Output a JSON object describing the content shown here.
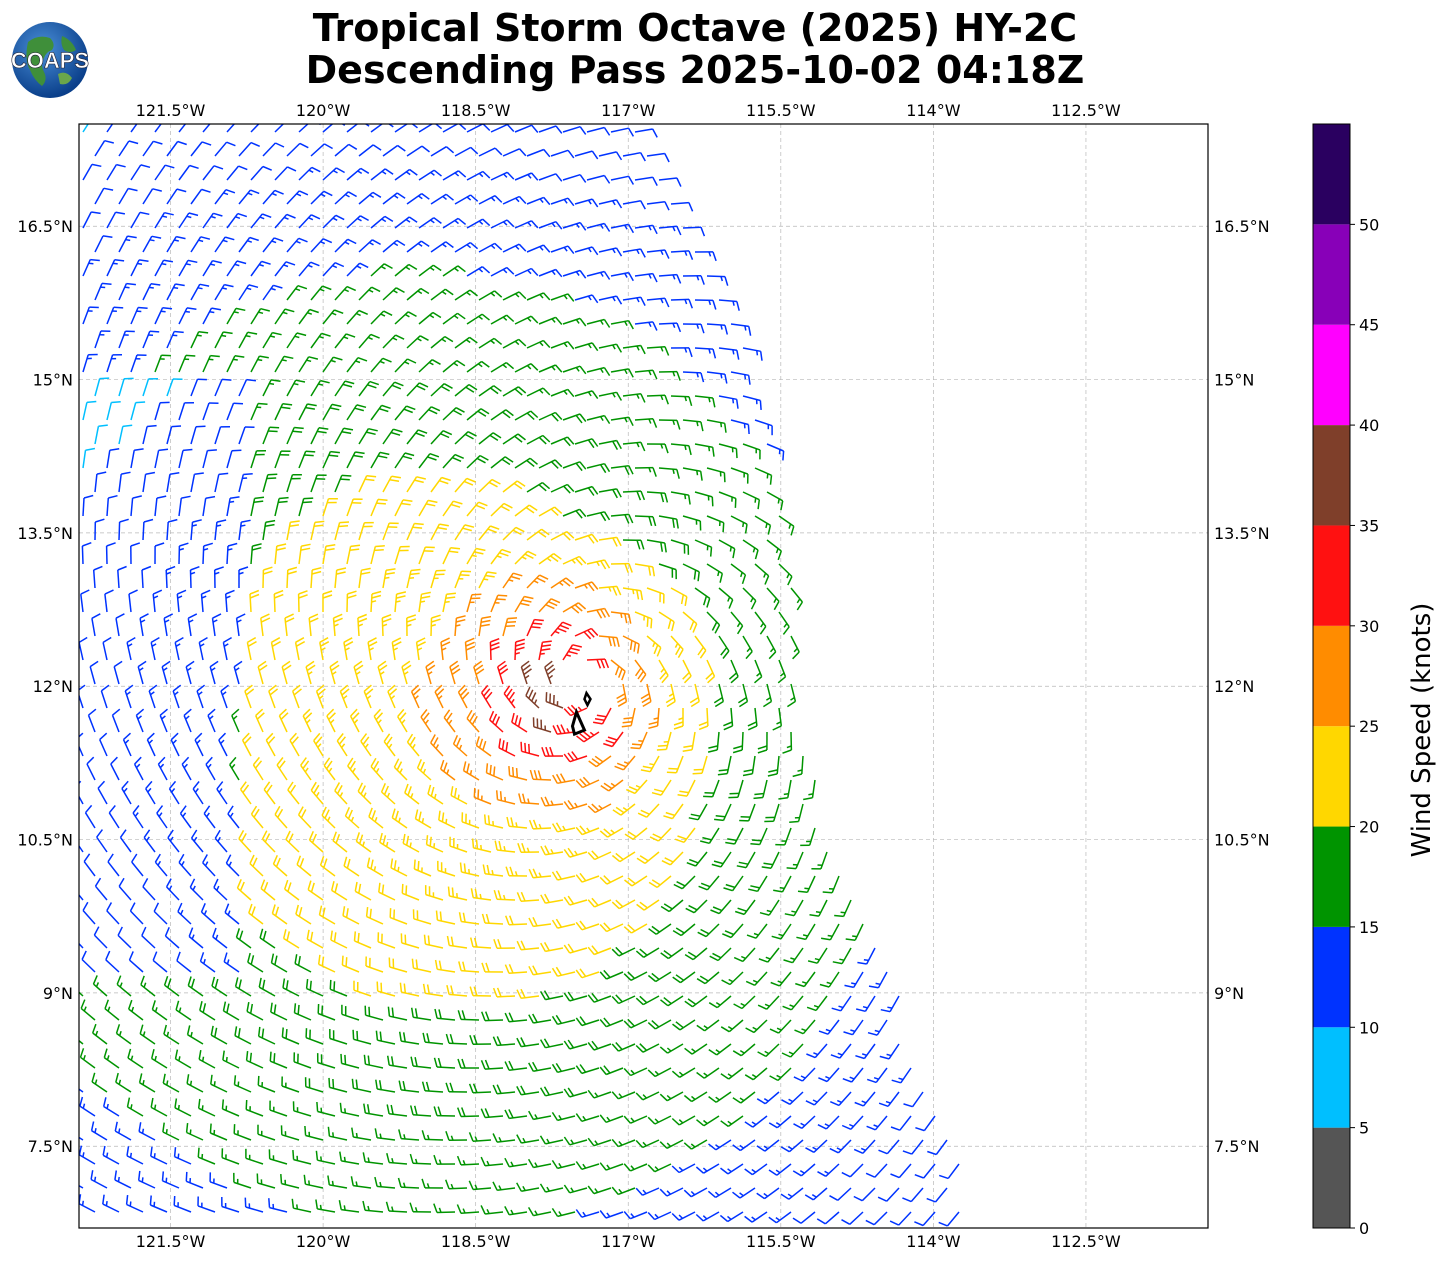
{
  "title_line1": "Tropical Storm Octave (2025) HY-2C",
  "title_line2": "Descending Pass 2025-10-02 04:18Z",
  "logo_text": "COAPS",
  "map": {
    "lon_range": [
      -122.4,
      -111.3
    ],
    "lat_range": [
      6.7,
      17.5
    ],
    "lon_ticks": [
      {
        "value": -121.5,
        "label": "121.5°W"
      },
      {
        "value": -120.0,
        "label": "120°W"
      },
      {
        "value": -118.5,
        "label": "118.5°W"
      },
      {
        "value": -117.0,
        "label": "117°W"
      },
      {
        "value": -115.5,
        "label": "115.5°W"
      },
      {
        "value": -114.0,
        "label": "114°W"
      },
      {
        "value": -112.5,
        "label": "112.5°W"
      }
    ],
    "lat_ticks": [
      {
        "value": 16.5,
        "label": "16.5°N"
      },
      {
        "value": 15.0,
        "label": "15°N"
      },
      {
        "value": 13.5,
        "label": "13.5°N"
      },
      {
        "value": 12.0,
        "label": "12°N"
      },
      {
        "value": 10.5,
        "label": "10.5°N"
      },
      {
        "value": 9.0,
        "label": "9°N"
      },
      {
        "value": 7.5,
        "label": "7.5°N"
      }
    ],
    "storm_center": {
      "lon": -117.45,
      "lat": 12.05
    },
    "swath_east_edge": [
      {
        "lat": 17.5,
        "lon": -116.7
      },
      {
        "lat": 15.0,
        "lon": -115.7
      },
      {
        "lat": 13.0,
        "lon": -115.3
      },
      {
        "lat": 12.0,
        "lon": -115.35
      },
      {
        "lat": 10.5,
        "lon": -114.95
      },
      {
        "lat": 9.0,
        "lon": -114.3
      },
      {
        "lat": 7.5,
        "lon": -113.75
      },
      {
        "lat": 6.7,
        "lon": -113.55
      }
    ]
  },
  "colorbar": {
    "label": "Wind Speed (knots)",
    "vmin": 0,
    "vmax": 55,
    "tick_labels": [
      "0",
      "5",
      "10",
      "15",
      "20",
      "25",
      "30",
      "35",
      "40",
      "45",
      "50"
    ],
    "bins": [
      {
        "from": 0,
        "to": 5,
        "color": "#555555"
      },
      {
        "from": 5,
        "to": 10,
        "color": "#00bfff"
      },
      {
        "from": 10,
        "to": 15,
        "color": "#0033ff"
      },
      {
        "from": 15,
        "to": 20,
        "color": "#009400"
      },
      {
        "from": 20,
        "to": 25,
        "color": "#ffd700"
      },
      {
        "from": 25,
        "to": 30,
        "color": "#ff8c00"
      },
      {
        "from": 30,
        "to": 35,
        "color": "#ff1111"
      },
      {
        "from": 35,
        "to": 40,
        "color": "#7f3f2a"
      },
      {
        "from": 40,
        "to": 45,
        "color": "#ff00ff"
      },
      {
        "from": 45,
        "to": 50,
        "color": "#8800b8"
      },
      {
        "from": 50,
        "to": 55,
        "color": "#2a0060"
      }
    ]
  }
}
